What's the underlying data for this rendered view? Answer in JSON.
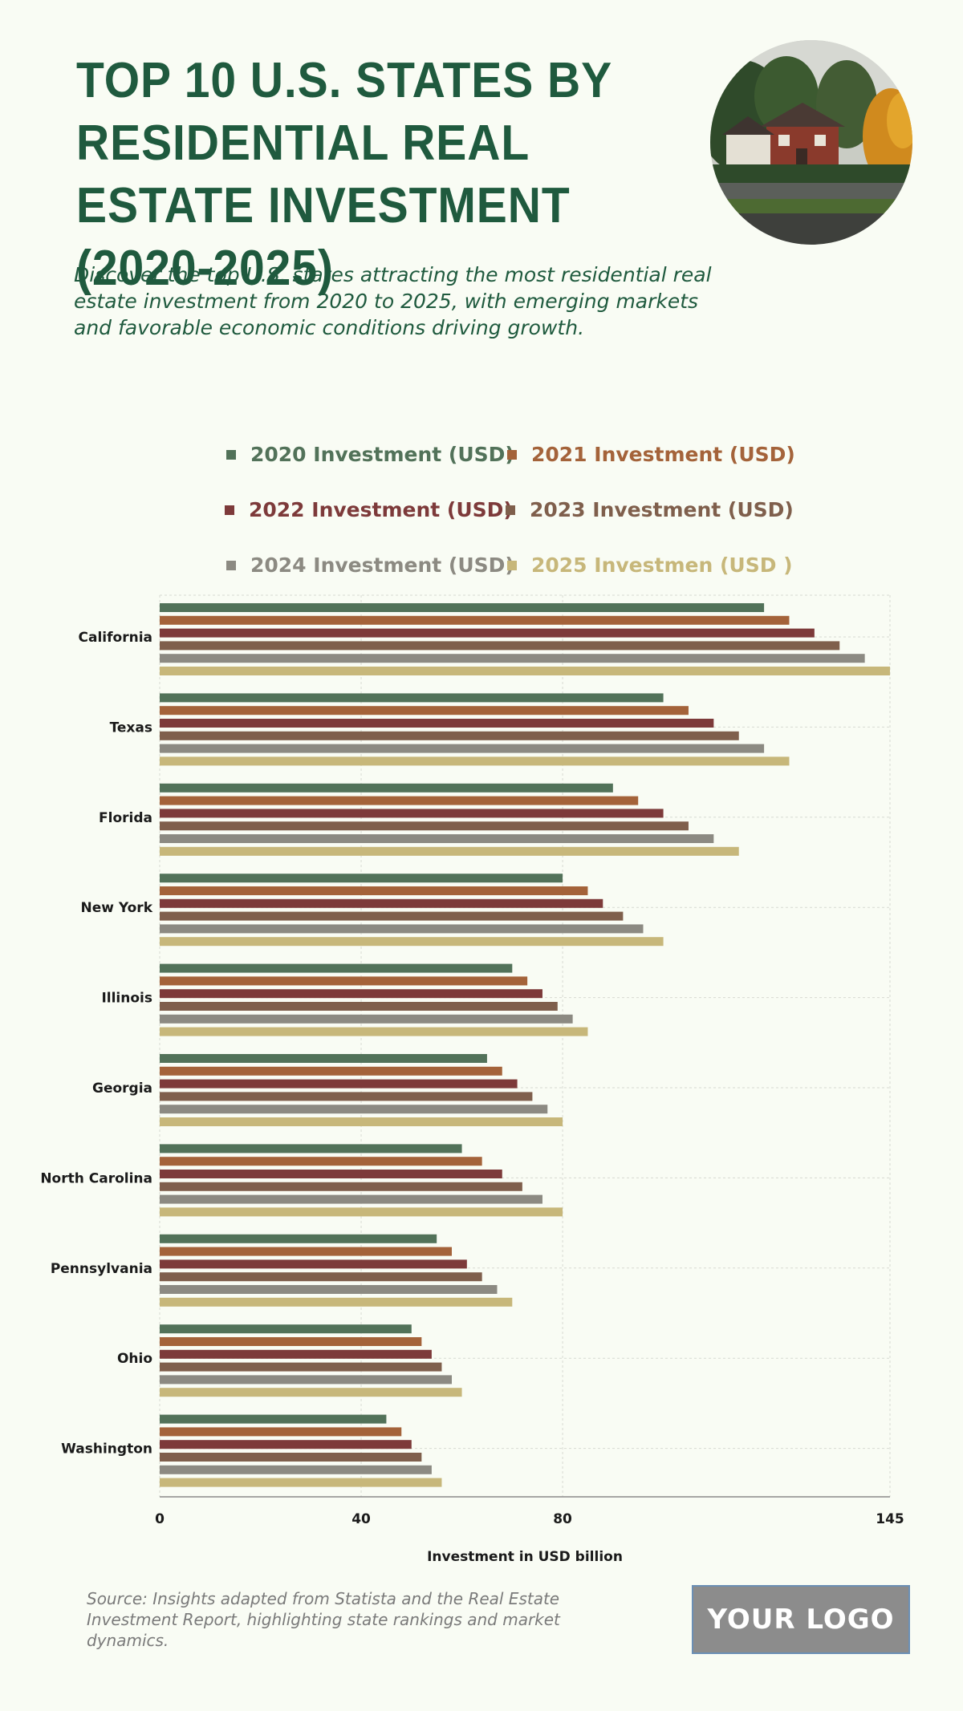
{
  "title": "TOP 10 U.S. STATES BY RESIDENTIAL REAL ESTATE INVESTMENT (2020-2025)",
  "subtitle": "Discover the top U.S. states attracting the most residential real estate investment from 2020 to 2025, with emerging markets and favorable economic conditions driving growth.",
  "source": "Source: Insights adapted from Statista and the Real Estate Investment Report, highlighting state rankings and market dynamics.",
  "logo": "YOUR LOGO",
  "photo_icon": "house-photo-icon",
  "colors": {
    "background": "#f9fcf4",
    "title": "#1f5a3e",
    "s2020": "#527259",
    "s2021": "#a4633a",
    "s2022": "#7d3a3a",
    "s2023": "#7f5f4c",
    "s2024": "#8c8a82",
    "s2025": "#c7b77a"
  },
  "chart_data": {
    "type": "bar",
    "orientation": "horizontal",
    "title": "",
    "xlabel": "Investment in USD billion",
    "ylabel": "",
    "xlim": [
      0,
      145
    ],
    "xticks": [
      "0",
      "40",
      "80",
      "145"
    ],
    "xtick_values": [
      0,
      40,
      80,
      145
    ],
    "grid": true,
    "legend_position": "top",
    "categories": [
      "California",
      "Texas",
      "Florida",
      "New York",
      "Illinois",
      "Georgia",
      "North Carolina",
      "Pennsylvania",
      "Ohio",
      "Washington"
    ],
    "series": [
      {
        "name": "2020 Investment (USD)",
        "color": "#527259",
        "values": [
          120,
          100,
          90,
          80,
          70,
          65,
          60,
          55,
          50,
          45
        ]
      },
      {
        "name": "2021 Investment (USD)",
        "color": "#a4633a",
        "values": [
          125,
          105,
          95,
          85,
          73,
          68,
          64,
          58,
          52,
          48
        ]
      },
      {
        "name": "2022 Investment (USD)",
        "color": "#7d3a3a",
        "values": [
          130,
          110,
          100,
          88,
          76,
          71,
          68,
          61,
          54,
          50
        ]
      },
      {
        "name": "2023 Investment (USD)",
        "color": "#7f5f4c",
        "values": [
          135,
          115,
          105,
          92,
          79,
          74,
          72,
          64,
          56,
          52
        ]
      },
      {
        "name": "2024 Investment (USD)",
        "color": "#8c8a82",
        "values": [
          140,
          120,
          110,
          96,
          82,
          77,
          76,
          67,
          58,
          54
        ]
      },
      {
        "name": "2025 Investmen (USD )",
        "color": "#c7b77a",
        "values": [
          145,
          125,
          115,
          100,
          85,
          80,
          80,
          70,
          60,
          56
        ]
      }
    ]
  }
}
